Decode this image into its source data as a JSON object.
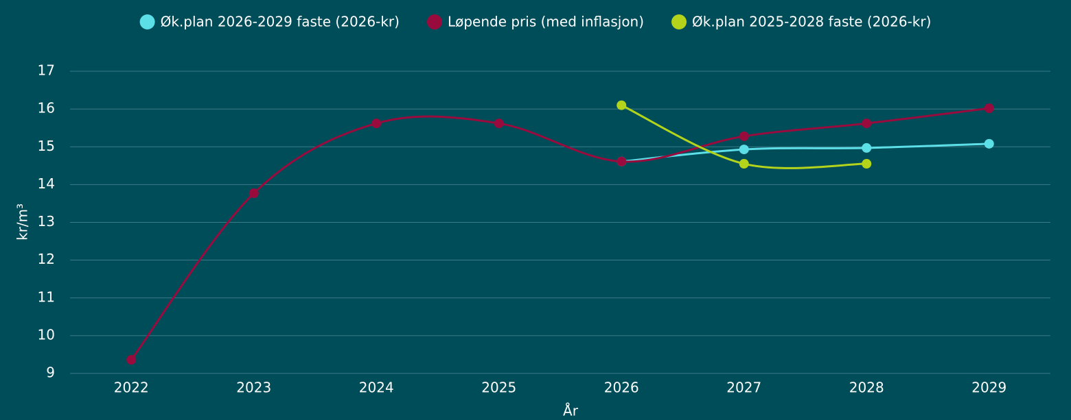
{
  "chart_data": {
    "type": "line",
    "categories": [
      "2022",
      "2023",
      "2024",
      "2025",
      "2026",
      "2027",
      "2028",
      "2029"
    ],
    "series": [
      {
        "name": "Øk.plan 2026-2029 faste (2026-kr)",
        "color": "#5ddfe8",
        "values": [
          null,
          null,
          null,
          null,
          14.61,
          14.93,
          14.97,
          15.08
        ]
      },
      {
        "name": "Løpende pris (med inflasjon)",
        "color": "#9a0b3d",
        "values": [
          9.36,
          13.77,
          15.62,
          15.62,
          14.61,
          15.28,
          15.62,
          16.02
        ]
      },
      {
        "name": "Øk.plan 2025-2028 faste (2026-kr)",
        "color": "#b4d41b",
        "values": [
          null,
          null,
          null,
          null,
          16.1,
          14.55,
          14.55,
          null
        ]
      }
    ],
    "ylim": [
      9,
      17
    ],
    "yticks": [
      9,
      10,
      11,
      12,
      13,
      14,
      15,
      16,
      17
    ],
    "y_label": "kr/m³",
    "x_label": "År",
    "grid": true,
    "legend": "top"
  }
}
